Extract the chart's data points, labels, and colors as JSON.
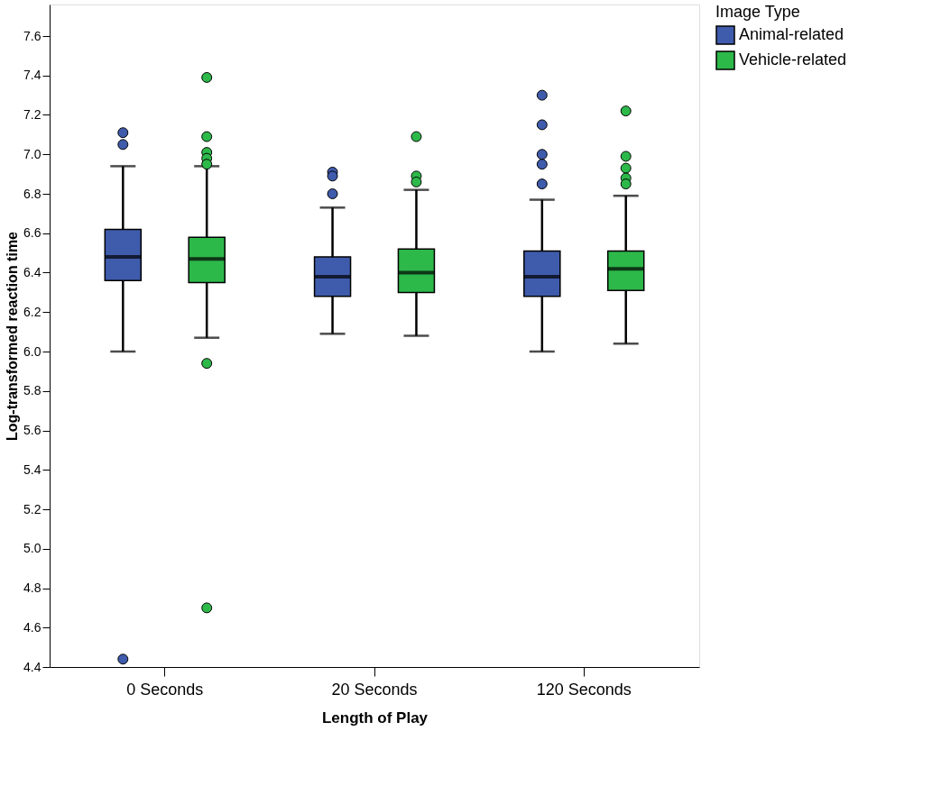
{
  "chart_data": {
    "type": "box",
    "xlabel": "Length of Play",
    "ylabel": "Log-transformed reaction time",
    "legend_title": "Image Type",
    "legend": "top right",
    "categories": [
      "0 Seconds",
      "20 Seconds",
      "120 Seconds"
    ],
    "ylim": [
      4.4,
      7.76
    ],
    "yticks": [
      4.4,
      4.6,
      4.8,
      {
        "value": 5,
        "label": "5.0"
      },
      5.2,
      5.4,
      5.6,
      5.8,
      {
        "value": 6,
        "label": "6.0"
      },
      6.2,
      6.4,
      6.6,
      6.8,
      {
        "value": 7,
        "label": "7.0"
      },
      7.2,
      7.4,
      7.6
    ],
    "grid": false,
    "series": [
      {
        "name": "Animal-related",
        "color": "#3f5bab",
        "boxes": [
          {
            "low": 6.0,
            "q1": 6.36,
            "median": 6.48,
            "q3": 6.62,
            "high": 6.94,
            "outliers": [
              7.11,
              7.05,
              4.44
            ]
          },
          {
            "low": 6.09,
            "q1": 6.28,
            "median": 6.38,
            "q3": 6.48,
            "high": 6.73,
            "outliers": [
              6.91,
              6.89,
              6.8
            ]
          },
          {
            "low": 6.0,
            "q1": 6.28,
            "median": 6.38,
            "q3": 6.51,
            "high": 6.77,
            "outliers": [
              7.3,
              7.15,
              7.0,
              6.95,
              6.85
            ]
          }
        ]
      },
      {
        "name": "Vehicle-related",
        "color": "#2db84a",
        "boxes": [
          {
            "low": 6.07,
            "q1": 6.35,
            "median": 6.47,
            "q3": 6.58,
            "high": 6.94,
            "outliers": [
              7.39,
              7.09,
              7.01,
              6.98,
              6.95,
              5.94,
              4.7
            ]
          },
          {
            "low": 6.08,
            "q1": 6.3,
            "median": 6.4,
            "q3": 6.52,
            "high": 6.82,
            "outliers": [
              7.09,
              6.89,
              6.86
            ]
          },
          {
            "low": 6.04,
            "q1": 6.31,
            "median": 6.42,
            "q3": 6.51,
            "high": 6.79,
            "outliers": [
              7.22,
              6.99,
              6.93,
              6.88,
              6.85
            ]
          }
        ]
      }
    ]
  }
}
